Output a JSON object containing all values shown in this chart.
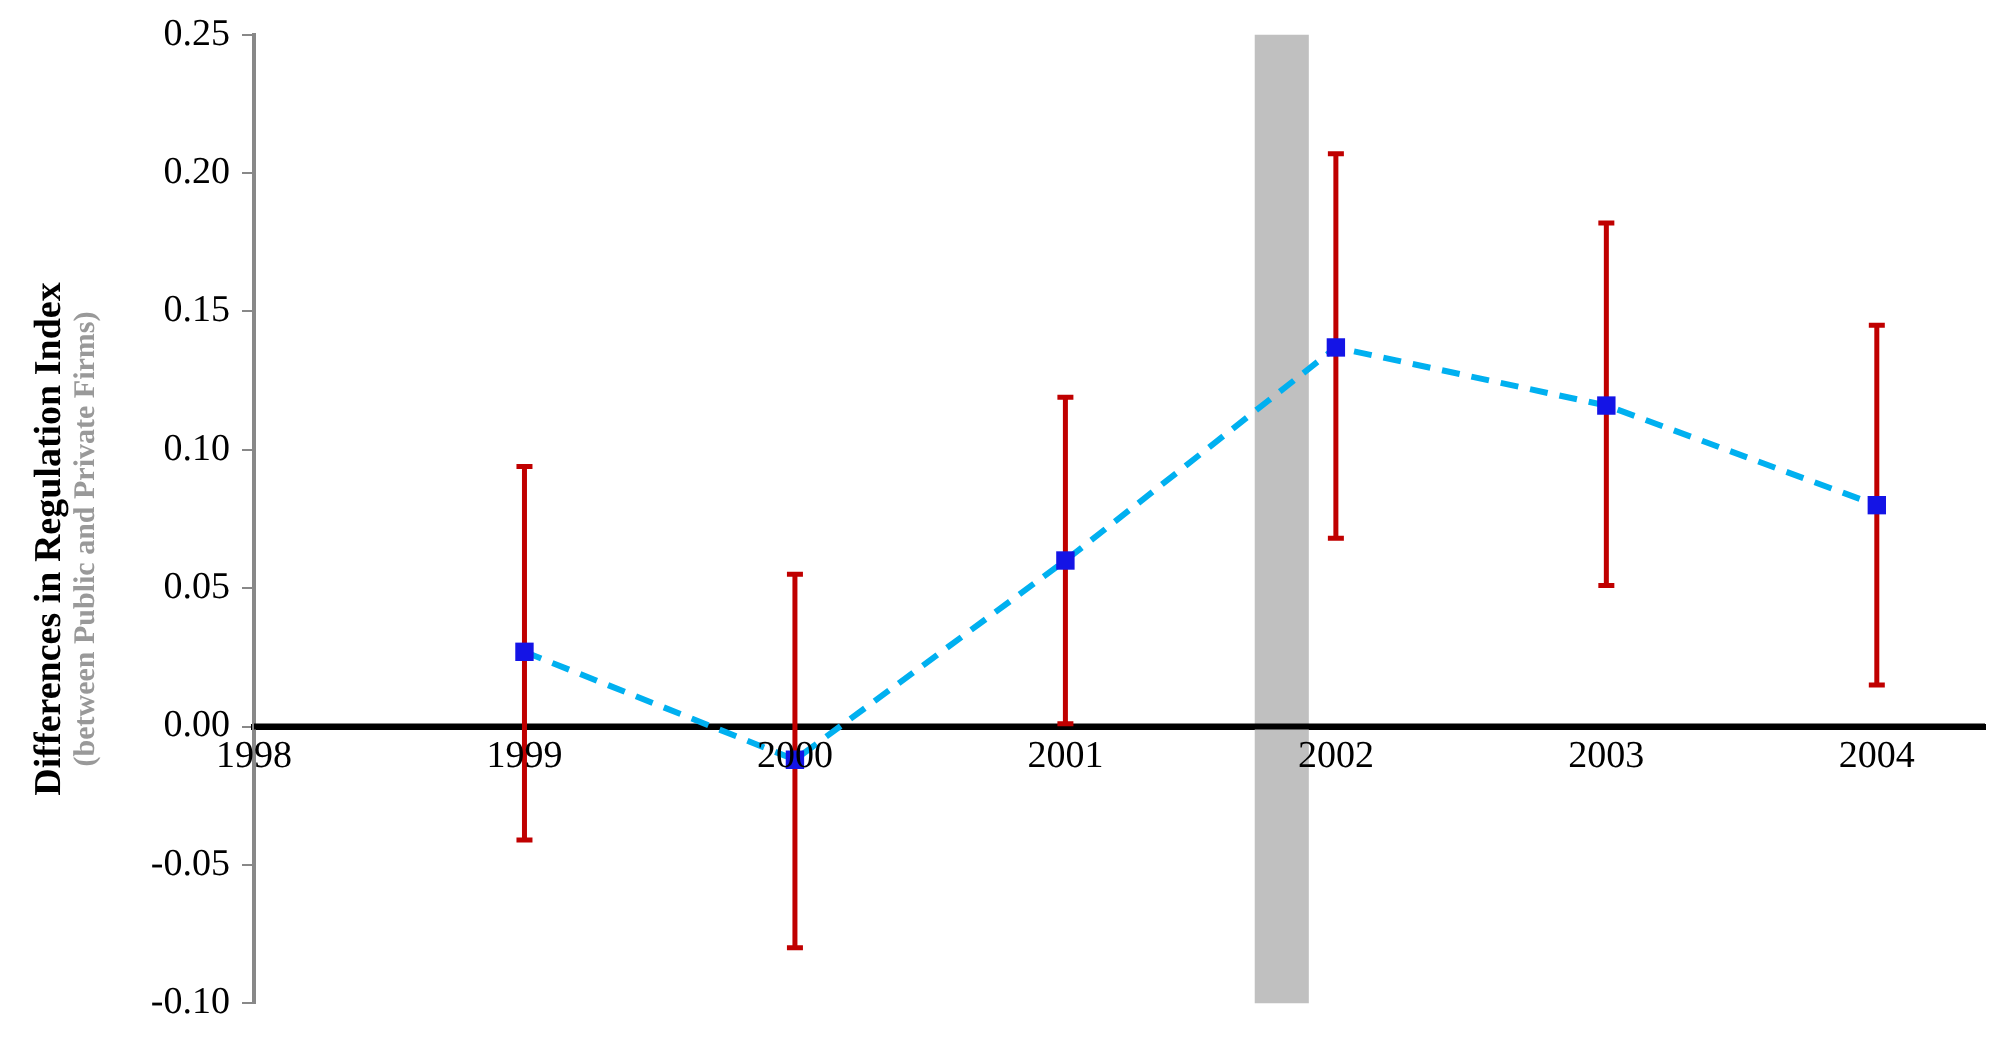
{
  "chart_data": {
    "type": "line",
    "ylabel": "Differences in Regulation Index\n(between Public and Private Firms)",
    "x": [
      1999,
      2000,
      2001,
      2002,
      2003,
      2004
    ],
    "series": [
      {
        "color": "#00b0f0",
        "colors": [
          "#1414e6",
          "#1414e6",
          "#1414e6",
          "#1414e6",
          "#1414e6",
          "#1414e6"
        ],
        "values": [
          0.027,
          -0.012,
          0.06,
          0.137,
          0.116,
          0.08
        ],
        "errors": [
          [
            -0.041,
            0.094
          ],
          [
            -0.08,
            0.055
          ],
          [
            0.001,
            0.119
          ],
          [
            0.068,
            0.207
          ],
          [
            0.051,
            0.182
          ],
          [
            0.015,
            0.145
          ]
        ]
      }
    ],
    "xlim": [
      1998,
      2004.4
    ],
    "xticks": [
      1998,
      1999,
      2000,
      2001,
      2002,
      2003,
      2004
    ],
    "ylim": [
      -0.1,
      0.25
    ],
    "yticks": [
      {
        "value": -0.1,
        "label": "-0.10"
      },
      -0.05,
      {
        "value": 0,
        "label": "0.00"
      },
      0.05,
      {
        "value": 0.1,
        "label": "0.10"
      },
      0.15,
      {
        "value": 0.2,
        "label": "0.20"
      },
      0.25
    ],
    "bands": [
      {
        "axis": "x",
        "from": 2001.7,
        "to": 2001.9,
        "color": "#c0c0c0"
      }
    ],
    "grid": false,
    "marker": "square",
    "line_style": "dashed"
  }
}
